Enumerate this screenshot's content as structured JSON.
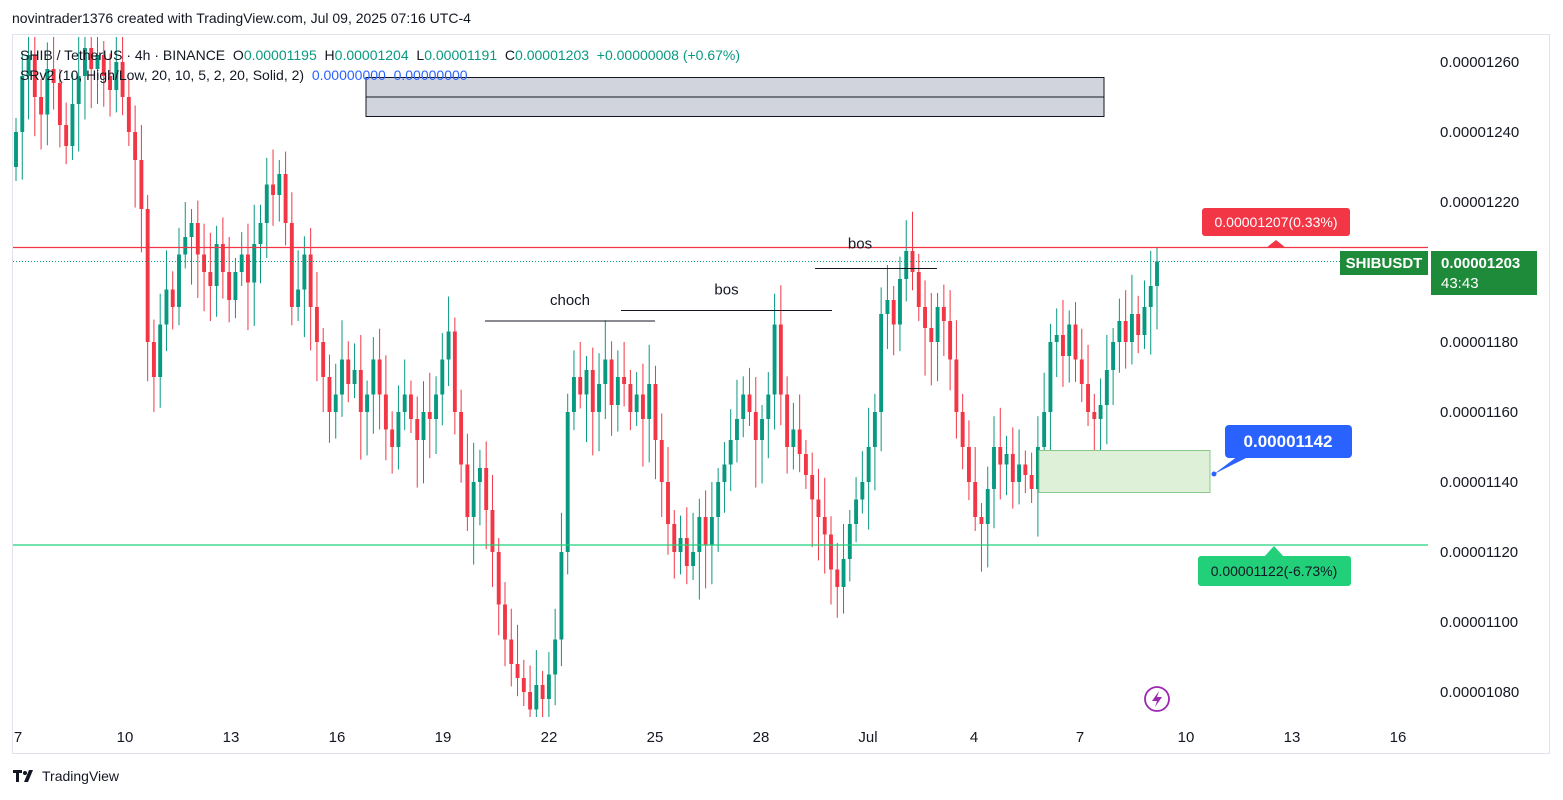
{
  "caption": "novintrader1376 created with TradingView.com, Jul 09, 2025 07:16 UTC-4",
  "legend": {
    "symbol": "SHIB / TetherUS · 4h · BINANCE",
    "open_label": "O",
    "open": "0.00001195",
    "high_label": "H",
    "high": "0.00001204",
    "low_label": "L",
    "low": "0.00001191",
    "close_label": "C",
    "close": "0.00001203",
    "change": "+0.00000008 (+0.67%)",
    "indicator": "SRv2 (10, High/Low, 20, 10, 5, 2, 20, Solid, 2)",
    "indicator_val1": "0.00000000",
    "indicator_val2": "0.00000000"
  },
  "footer": {
    "brand": "TradingView"
  },
  "colors": {
    "up": "#089981",
    "down": "#f23645",
    "accent": "#2962ff",
    "tp": "#22d07a",
    "zone": "#dff0d8"
  },
  "chart_data": {
    "type": "candlestick",
    "symbol": "SHIBUSDT",
    "interval": "4h",
    "x_ticks": [
      "7",
      "10",
      "13",
      "16",
      "19",
      "22",
      "25",
      "28",
      "Jul",
      "4",
      "7",
      "10",
      "13",
      "16"
    ],
    "y_ticks": [
      "0.00001260",
      "0.00001240",
      "0.00001220",
      "0.00001200",
      "0.00001180",
      "0.00001160",
      "0.00001140",
      "0.00001120",
      "0.00001100",
      "0.00001080"
    ],
    "y_range": [
      1.073e-05,
      1.27e-05
    ],
    "price_badge": {
      "label": "SHIBUSDT",
      "price": "0.00001203",
      "countdown": "43:43"
    },
    "target_line": {
      "value": 1.207e-05,
      "label": "0.00001207(0.33%)"
    },
    "stop_line": {
      "value": 1.122e-05,
      "label": "0.00001122(-6.73%)"
    },
    "entry_callout": {
      "label": "0.00001142"
    },
    "annotations": [
      {
        "text": "choch",
        "level": 1.186e-05
      },
      {
        "text": "bos",
        "level": 1.189e-05
      },
      {
        "text": "bos",
        "level": 1.201e-05
      }
    ],
    "zone_top": [
      1.255e-05,
      1.245e-05
    ],
    "zone_demand": [
      1.149e-05,
      1.137e-05
    ],
    "candles_ohlc_note": "approximate path, values in price units",
    "path": [
      1.24e-05,
      1.256e-05,
      1.262e-05,
      1.25e-05,
      1.245e-05,
      1.258e-05,
      1.254e-05,
      1.242e-05,
      1.236e-05,
      1.248e-05,
      1.256e-05,
      1.264e-05,
      1.258e-05,
      1.262e-05,
      1.256e-05,
      1.252e-05,
      1.26e-05,
      1.25e-05,
      1.24e-05,
      1.232e-05,
      1.218e-05,
      1.18e-05,
      1.17e-05,
      1.185e-05,
      1.195e-05,
      1.19e-05,
      1.205e-05,
      1.21e-05,
      1.214e-05,
      1.205e-05,
      1.2e-05,
      1.196e-05,
      1.208e-05,
      1.2e-05,
      1.192e-05,
      1.2e-05,
      1.205e-05,
      1.197e-05,
      1.208e-05,
      1.214e-05,
      1.225e-05,
      1.222e-05,
      1.228e-05,
      1.214e-05,
      1.19e-05,
      1.195e-05,
      1.205e-05,
      1.19e-05,
      1.18e-05,
      1.17e-05,
      1.16e-05,
      1.165e-05,
      1.175e-05,
      1.168e-05,
      1.172e-05,
      1.16e-05,
      1.165e-05,
      1.175e-05,
      1.165e-05,
      1.155e-05,
      1.15e-05,
      1.16e-05,
      1.165e-05,
      1.158e-05,
      1.152e-05,
      1.16e-05,
      1.158e-05,
      1.165e-05,
      1.175e-05,
      1.183e-05,
      1.16e-05,
      1.145e-05,
      1.13e-05,
      1.14e-05,
      1.144e-05,
      1.132e-05,
      1.12e-05,
      1.105e-05,
      1.095e-05,
      1.088e-05,
      1.084e-05,
      1.08e-05,
      1.075e-05,
      1.082e-05,
      1.078e-05,
      1.085e-05,
      1.095e-05,
      1.12e-05,
      1.16e-05,
      1.17e-05,
      1.165e-05,
      1.172e-05,
      1.16e-05,
      1.168e-05,
      1.175e-05,
      1.162e-05,
      1.17e-05,
      1.168e-05,
      1.16e-05,
      1.165e-05,
      1.158e-05,
      1.168e-05,
      1.152e-05,
      1.14e-05,
      1.128e-05,
      1.12e-05,
      1.124e-05,
      1.116e-05,
      1.12e-05,
      1.13e-05,
      1.122e-05,
      1.13e-05,
      1.14e-05,
      1.145e-05,
      1.152e-05,
      1.158e-05,
      1.165e-05,
      1.16e-05,
      1.152e-05,
      1.158e-05,
      1.165e-05,
      1.185e-05,
      1.165e-05,
      1.15e-05,
      1.155e-05,
      1.148e-05,
      1.142e-05,
      1.135e-05,
      1.13e-05,
      1.125e-05,
      1.115e-05,
      1.11e-05,
      1.118e-05,
      1.128e-05,
      1.135e-05,
      1.14e-05,
      1.15e-05,
      1.16e-05,
      1.188e-05,
      1.192e-05,
      1.185e-05,
      1.198e-05,
      1.206e-05,
      1.2e-05,
      1.19e-05,
      1.184e-05,
      1.18e-05,
      1.19e-05,
      1.186e-05,
      1.175e-05,
      1.16e-05,
      1.15e-05,
      1.14e-05,
      1.13e-05,
      1.128e-05,
      1.138e-05,
      1.15e-05,
      1.145e-05,
      1.148e-05,
      1.14e-05,
      1.145e-05,
      1.142e-05,
      1.138e-05,
      1.15e-05,
      1.16e-05,
      1.18e-05,
      1.182e-05,
      1.176e-05,
      1.185e-05,
      1.175e-05,
      1.168e-05,
      1.16e-05,
      1.158e-05,
      1.162e-05,
      1.172e-05,
      1.18e-05,
      1.186e-05,
      1.18e-05,
      1.188e-05,
      1.182e-05,
      1.19e-05,
      1.196e-05,
      1.203e-05
    ]
  }
}
